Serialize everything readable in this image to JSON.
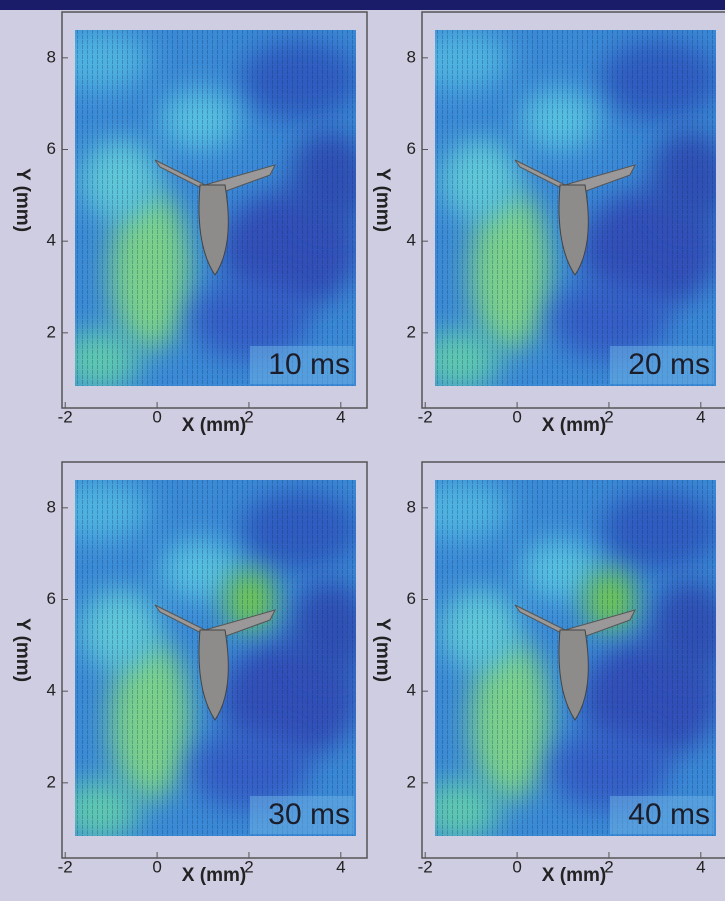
{
  "panels": [
    {
      "time": "10 ms",
      "x_label": "X (mm)",
      "y_label": "Y (mm)",
      "xlim": [
        -2.07,
        4.57
      ],
      "ylim": [
        0.36,
        9.0
      ],
      "xticks": [
        -2,
        0,
        2,
        4
      ],
      "yticks": [
        2,
        4,
        6,
        8
      ]
    },
    {
      "time": "20 ms",
      "x_label": "X (mm)",
      "y_label": "Y (mm)",
      "xlim": [
        -2.07,
        4.57
      ],
      "ylim": [
        0.36,
        9.0
      ],
      "xticks": [
        -2,
        0,
        2,
        4
      ],
      "yticks": [
        2,
        4,
        6,
        8
      ]
    },
    {
      "time": "30 ms",
      "x_label": "X (mm)",
      "y_label": "Y (mm)",
      "xlim": [
        -2.07,
        4.57
      ],
      "ylim": [
        0.36,
        9.0
      ],
      "xticks": [
        -2,
        0,
        2,
        4
      ],
      "yticks": [
        2,
        4,
        6,
        8
      ]
    },
    {
      "time": "40 ms",
      "x_label": "X (mm)",
      "y_label": "Y (mm)",
      "xlim": [
        -2.07,
        4.57
      ],
      "ylim": [
        0.36,
        9.0
      ],
      "xticks": [
        -2,
        0,
        2,
        4
      ],
      "yticks": [
        2,
        4,
        6,
        8
      ]
    }
  ]
}
